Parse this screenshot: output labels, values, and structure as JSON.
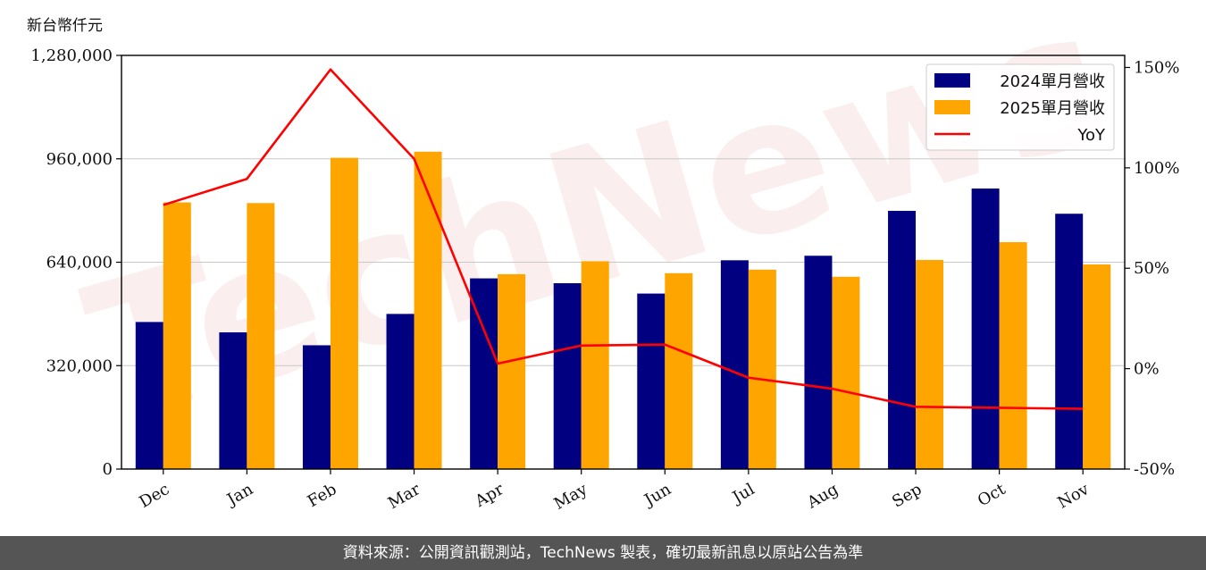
{
  "unit_label": "新台幣仟元",
  "footer_text": "資料來源：公開資訊觀測站，TechNews 製表，確切最新訊息以原站公告為準",
  "watermark": "TechNews",
  "chart_data": {
    "type": "bar",
    "categories": [
      "Dec",
      "Jan",
      "Feb",
      "Mar",
      "Apr",
      "May",
      "Jun",
      "Jul",
      "Aug",
      "Sep",
      "Oct",
      "Nov"
    ],
    "series": [
      {
        "name": "2024單月營收",
        "kind": "bar",
        "color": "#000080",
        "values": [
          455000,
          423000,
          383000,
          480000,
          590000,
          575000,
          543000,
          646000,
          660000,
          799000,
          868000,
          790000
        ]
      },
      {
        "name": "2025單月營收",
        "kind": "bar",
        "color": "#FFA500",
        "values": [
          825000,
          823000,
          963000,
          982000,
          603000,
          643000,
          606000,
          617000,
          595000,
          647000,
          702000,
          633000
        ]
      },
      {
        "name": "YoY",
        "kind": "line",
        "color": "#FF0000",
        "axis": "right",
        "values": [
          81.5,
          94.5,
          149.0,
          104.5,
          2.5,
          11.5,
          12.0,
          -4.5,
          -10.0,
          -19.0,
          -19.5,
          -20.0
        ]
      }
    ],
    "y_left": {
      "ticks": [
        "0",
        "320,000",
        "640,000",
        "960,000",
        "1,280,000"
      ],
      "range": [
        0,
        1280000
      ]
    },
    "y_right": {
      "ticks": [
        "-50%",
        "0%",
        "50%",
        "100%",
        "150%"
      ],
      "range": [
        -50,
        156
      ]
    },
    "grid": "horizontal",
    "legend_position": "top-right"
  }
}
